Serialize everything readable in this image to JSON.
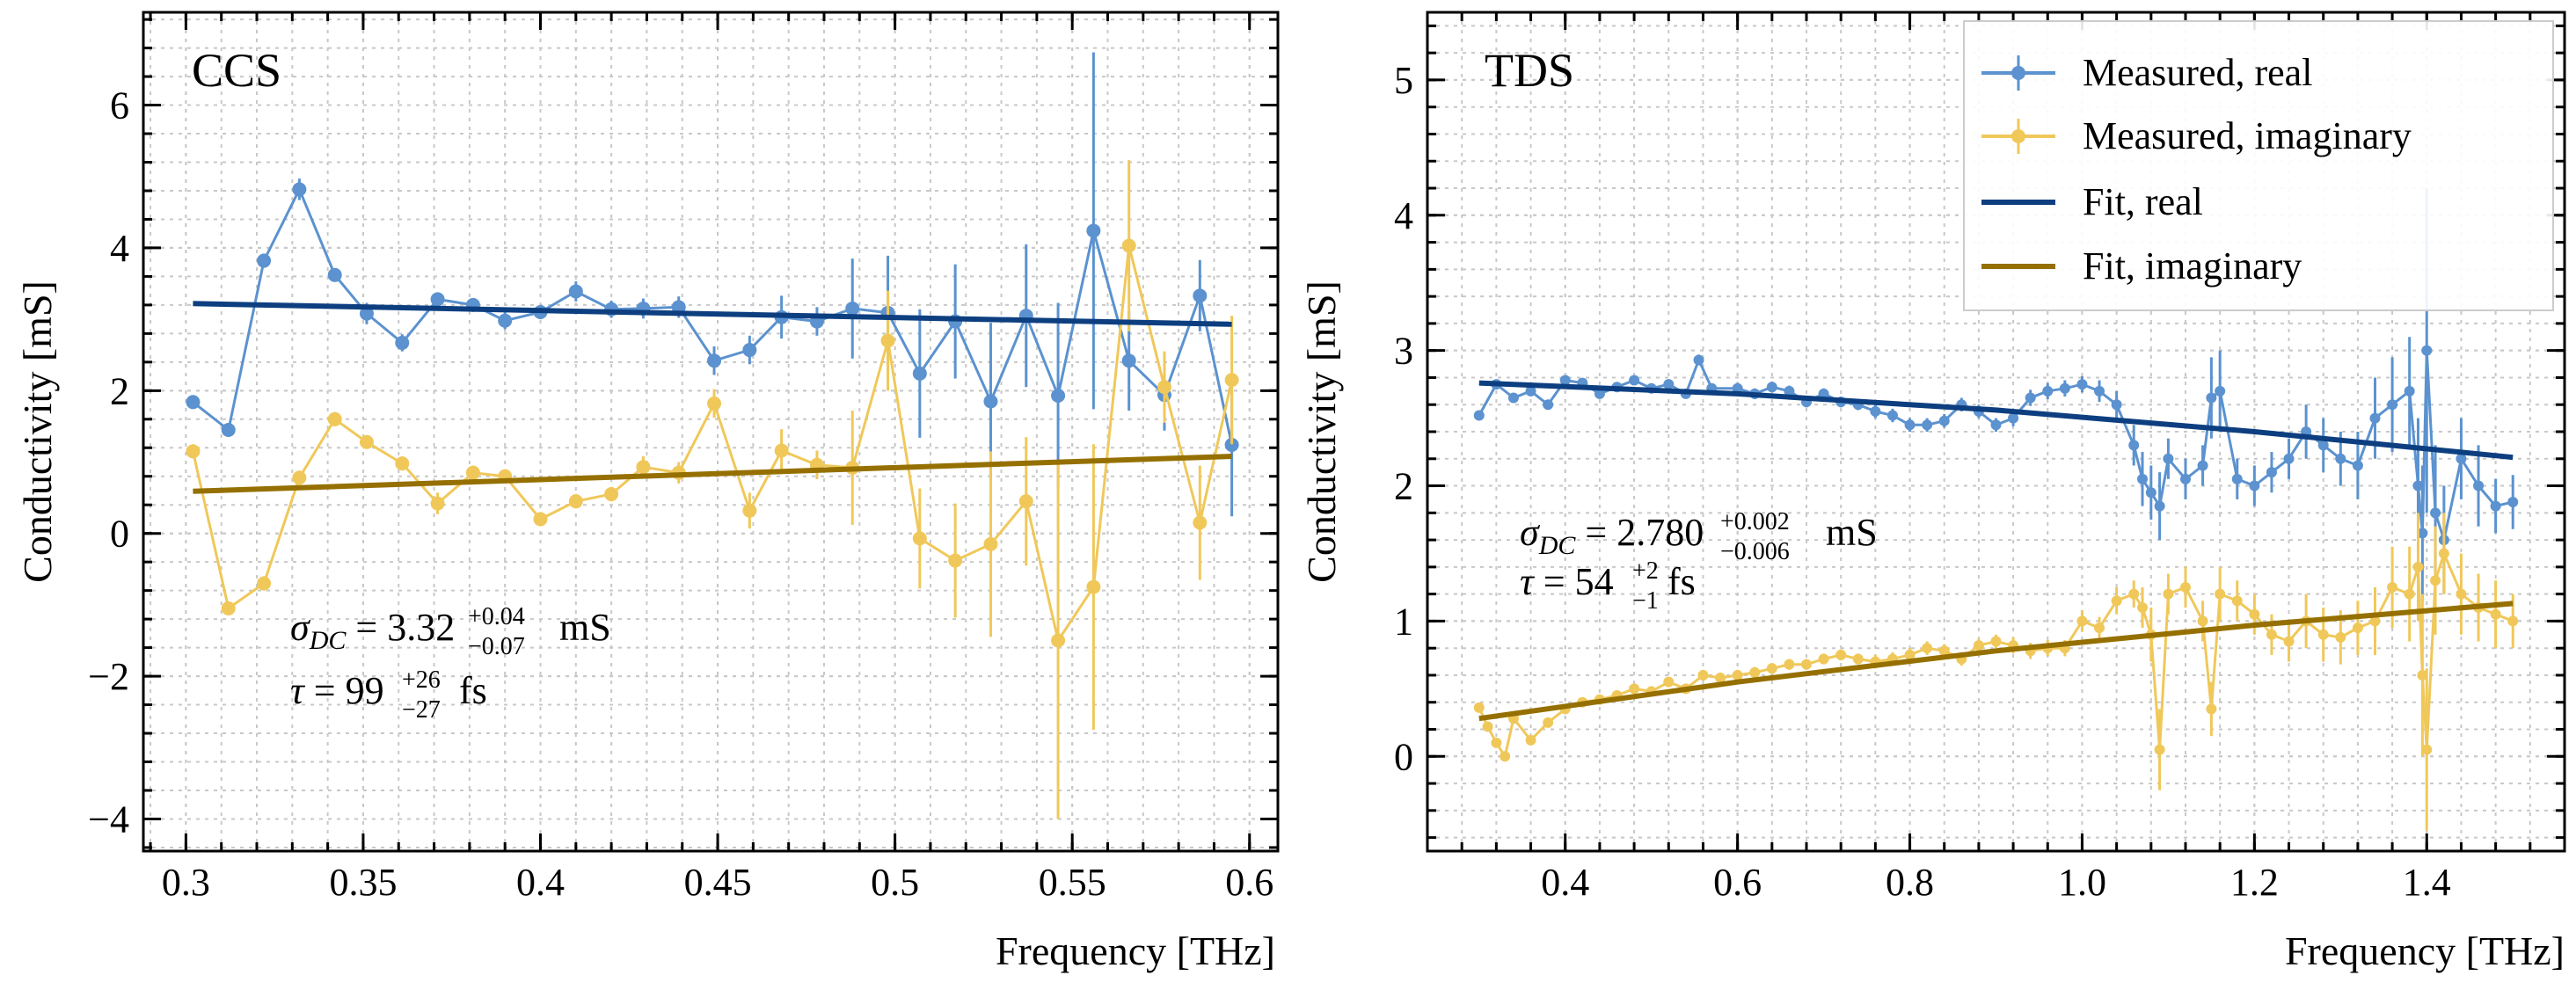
{
  "chart_data": [
    {
      "type": "line",
      "panel_label": "CCS",
      "xlabel": "Frequency [THz]",
      "ylabel": "Conductivity [mS]",
      "xlim": [
        0.288,
        0.608
      ],
      "ylim": [
        -4.45,
        7.3
      ],
      "xticks": [
        0.3,
        0.35,
        0.4,
        0.45,
        0.5,
        0.55,
        0.6
      ],
      "xtick_labels": [
        "0.3",
        "0.35",
        "0.4",
        "0.45",
        "0.5",
        "0.55",
        "0.6"
      ],
      "yticks": [
        -4,
        -2,
        0,
        2,
        4,
        6
      ],
      "ytick_labels": [
        "−4",
        "−2",
        "0",
        "2",
        "4",
        "6"
      ],
      "grid": true,
      "annotation": {
        "sigma_symbol": "σ",
        "sigma_sub": "DC",
        "sigma_value": "3.32",
        "sigma_plus": "+0.04",
        "sigma_minus": "−0.07",
        "sigma_unit": "mS",
        "tau_symbol": "τ",
        "tau_value": "99",
        "tau_plus": "+26",
        "tau_minus": "−27",
        "tau_unit": "fs"
      },
      "series": [
        {
          "name": "Measured, real",
          "color": "#5b92cf",
          "x": [
            0.302,
            0.312,
            0.322,
            0.332,
            0.342,
            0.351,
            0.361,
            0.371,
            0.381,
            0.39,
            0.4,
            0.41,
            0.42,
            0.429,
            0.439,
            0.449,
            0.459,
            0.468,
            0.478,
            0.488,
            0.498,
            0.507,
            0.517,
            0.527,
            0.537,
            0.546,
            0.556,
            0.566,
            0.576,
            0.586,
            0.595
          ],
          "y": [
            1.84,
            1.45,
            3.82,
            4.82,
            3.62,
            3.08,
            2.67,
            3.28,
            3.2,
            2.98,
            3.1,
            3.39,
            3.14,
            3.15,
            3.17,
            2.42,
            2.57,
            3.03,
            2.97,
            3.15,
            3.09,
            2.24,
            2.97,
            1.85,
            3.05,
            1.93,
            4.24,
            2.42,
            1.94,
            3.33,
            1.24
          ],
          "err": [
            0.08,
            0.08,
            0.1,
            0.15,
            0.08,
            0.15,
            0.12,
            0.08,
            0.08,
            0.12,
            0.1,
            0.14,
            0.12,
            0.14,
            0.15,
            0.2,
            0.2,
            0.3,
            0.2,
            0.7,
            0.8,
            0.9,
            0.8,
            1.1,
            1.0,
            1.3,
            2.5,
            0.7,
            0.5,
            0.5,
            1.0
          ]
        },
        {
          "name": "Measured, imaginary",
          "color": "#f0c85a",
          "x": [
            0.302,
            0.312,
            0.322,
            0.332,
            0.342,
            0.351,
            0.361,
            0.371,
            0.381,
            0.39,
            0.4,
            0.41,
            0.42,
            0.429,
            0.439,
            0.449,
            0.459,
            0.468,
            0.478,
            0.488,
            0.498,
            0.507,
            0.517,
            0.527,
            0.537,
            0.546,
            0.556,
            0.566,
            0.576,
            0.586,
            0.595
          ],
          "y": [
            1.15,
            -1.05,
            -0.7,
            0.78,
            1.6,
            1.28,
            0.98,
            0.42,
            0.85,
            0.8,
            0.2,
            0.45,
            0.55,
            0.93,
            0.85,
            1.82,
            0.32,
            1.16,
            0.96,
            0.92,
            2.7,
            -0.07,
            -0.38,
            -0.15,
            0.45,
            -1.5,
            -0.75,
            4.03,
            2.05,
            0.15,
            2.15
          ],
          "err": [
            0.1,
            0.08,
            0.1,
            0.1,
            0.1,
            0.08,
            0.1,
            0.15,
            0.1,
            0.1,
            0.1,
            0.1,
            0.1,
            0.15,
            0.15,
            0.2,
            0.25,
            0.3,
            0.2,
            0.8,
            0.7,
            0.7,
            0.8,
            1.3,
            0.9,
            2.5,
            2.0,
            1.2,
            0.5,
            0.8,
            0.9
          ]
        },
        {
          "name": "Fit, real",
          "color": "#0d3f80",
          "x": [
            0.302,
            0.595
          ],
          "y": [
            3.22,
            2.93
          ]
        },
        {
          "name": "Fit, imaginary",
          "color": "#957000",
          "x": [
            0.302,
            0.595
          ],
          "y": [
            0.59,
            1.08
          ]
        }
      ]
    },
    {
      "type": "line",
      "panel_label": "TDS",
      "xlabel": "Frequency [THz]",
      "ylabel": "Conductivity [mS]",
      "xlim": [
        0.24,
        1.56
      ],
      "ylim": [
        -0.7,
        5.5
      ],
      "xticks": [
        0.4,
        0.6,
        0.8,
        1.0,
        1.2,
        1.4
      ],
      "xtick_labels": [
        "0.4",
        "0.6",
        "0.8",
        "1.0",
        "1.2",
        "1.4"
      ],
      "yticks": [
        0,
        1,
        2,
        3,
        4,
        5
      ],
      "ytick_labels": [
        "0",
        "1",
        "2",
        "3",
        "4",
        "5"
      ],
      "grid": true,
      "legend": "top-right",
      "annotation": {
        "sigma_symbol": "σ",
        "sigma_sub": "DC",
        "sigma_value": "2.780",
        "sigma_plus": "+0.002",
        "sigma_minus": "−0.006",
        "sigma_unit": "mS",
        "tau_symbol": "τ",
        "tau_value": "54",
        "tau_plus": "+2",
        "tau_minus": "−1",
        "tau_unit": "fs"
      },
      "series": [
        {
          "name": "Measured, real",
          "color": "#5b92cf",
          "x": [
            0.3,
            0.32,
            0.34,
            0.36,
            0.38,
            0.4,
            0.42,
            0.44,
            0.46,
            0.48,
            0.5,
            0.52,
            0.54,
            0.555,
            0.57,
            0.6,
            0.62,
            0.64,
            0.66,
            0.68,
            0.7,
            0.72,
            0.74,
            0.76,
            0.78,
            0.8,
            0.82,
            0.84,
            0.86,
            0.88,
            0.9,
            0.92,
            0.94,
            0.96,
            0.98,
            1.0,
            1.02,
            1.04,
            1.06,
            1.07,
            1.08,
            1.09,
            1.1,
            1.12,
            1.14,
            1.15,
            1.16,
            1.18,
            1.2,
            1.22,
            1.24,
            1.26,
            1.28,
            1.3,
            1.32,
            1.34,
            1.36,
            1.38,
            1.39,
            1.395,
            1.4,
            1.41,
            1.42,
            1.44,
            1.46,
            1.48,
            1.5
          ],
          "y": [
            2.52,
            2.75,
            2.65,
            2.7,
            2.6,
            2.78,
            2.76,
            2.68,
            2.73,
            2.78,
            2.72,
            2.75,
            2.68,
            2.93,
            2.72,
            2.72,
            2.68,
            2.73,
            2.7,
            2.62,
            2.68,
            2.62,
            2.6,
            2.55,
            2.52,
            2.45,
            2.45,
            2.48,
            2.6,
            2.55,
            2.45,
            2.5,
            2.65,
            2.7,
            2.72,
            2.75,
            2.7,
            2.6,
            2.3,
            2.05,
            1.95,
            1.85,
            2.2,
            2.05,
            2.15,
            2.65,
            2.7,
            2.05,
            2.0,
            2.1,
            2.2,
            2.4,
            2.3,
            2.2,
            2.15,
            2.5,
            2.6,
            2.7,
            2.0,
            1.65,
            3.0,
            1.8,
            1.6,
            2.2,
            2.0,
            1.85,
            1.88
          ],
          "err": [
            0.03,
            0.03,
            0.03,
            0.03,
            0.03,
            0.03,
            0.03,
            0.03,
            0.03,
            0.03,
            0.03,
            0.03,
            0.03,
            0.04,
            0.03,
            0.04,
            0.04,
            0.04,
            0.04,
            0.04,
            0.04,
            0.04,
            0.04,
            0.05,
            0.05,
            0.05,
            0.05,
            0.05,
            0.05,
            0.05,
            0.05,
            0.06,
            0.06,
            0.06,
            0.06,
            0.06,
            0.08,
            0.1,
            0.15,
            0.2,
            0.2,
            0.25,
            0.15,
            0.15,
            0.15,
            0.3,
            0.3,
            0.15,
            0.15,
            0.15,
            0.15,
            0.2,
            0.2,
            0.2,
            0.25,
            0.3,
            0.35,
            0.4,
            0.5,
            0.5,
            1.2,
            0.5,
            0.4,
            0.3,
            0.3,
            0.2,
            0.2
          ]
        },
        {
          "name": "Measured, imaginary",
          "color": "#f0c85a",
          "x": [
            0.3,
            0.31,
            0.32,
            0.33,
            0.34,
            0.36,
            0.38,
            0.4,
            0.42,
            0.44,
            0.46,
            0.48,
            0.5,
            0.52,
            0.54,
            0.56,
            0.58,
            0.6,
            0.62,
            0.64,
            0.66,
            0.68,
            0.7,
            0.72,
            0.74,
            0.76,
            0.78,
            0.8,
            0.82,
            0.84,
            0.86,
            0.88,
            0.9,
            0.92,
            0.94,
            0.96,
            0.98,
            1.0,
            1.02,
            1.04,
            1.06,
            1.07,
            1.08,
            1.09,
            1.1,
            1.12,
            1.14,
            1.15,
            1.16,
            1.18,
            1.2,
            1.22,
            1.24,
            1.26,
            1.28,
            1.3,
            1.32,
            1.34,
            1.36,
            1.38,
            1.39,
            1.395,
            1.4,
            1.41,
            1.42,
            1.44,
            1.46,
            1.48,
            1.5
          ],
          "y": [
            0.36,
            0.22,
            0.1,
            0.0,
            0.28,
            0.12,
            0.25,
            0.35,
            0.4,
            0.42,
            0.45,
            0.5,
            0.48,
            0.55,
            0.5,
            0.6,
            0.58,
            0.6,
            0.62,
            0.65,
            0.68,
            0.68,
            0.72,
            0.75,
            0.72,
            0.7,
            0.72,
            0.75,
            0.8,
            0.78,
            0.72,
            0.82,
            0.85,
            0.82,
            0.78,
            0.8,
            0.8,
            1.0,
            0.95,
            1.15,
            1.2,
            1.1,
            0.9,
            0.05,
            1.2,
            1.25,
            1.0,
            0.35,
            1.2,
            1.15,
            1.05,
            0.9,
            0.85,
            1.0,
            0.9,
            0.88,
            0.95,
            1.0,
            1.25,
            1.2,
            1.4,
            0.6,
            0.05,
            1.3,
            1.5,
            1.2,
            1.1,
            1.05,
            1.0
          ],
          "err": [
            0.03,
            0.03,
            0.03,
            0.03,
            0.03,
            0.03,
            0.03,
            0.03,
            0.03,
            0.03,
            0.03,
            0.03,
            0.03,
            0.03,
            0.03,
            0.04,
            0.04,
            0.04,
            0.04,
            0.04,
            0.04,
            0.04,
            0.04,
            0.04,
            0.04,
            0.05,
            0.05,
            0.05,
            0.05,
            0.05,
            0.05,
            0.05,
            0.05,
            0.06,
            0.06,
            0.06,
            0.06,
            0.08,
            0.08,
            0.1,
            0.1,
            0.15,
            0.2,
            0.3,
            0.15,
            0.15,
            0.15,
            0.2,
            0.2,
            0.15,
            0.15,
            0.15,
            0.15,
            0.2,
            0.2,
            0.2,
            0.2,
            0.25,
            0.3,
            0.35,
            0.4,
            0.6,
            0.6,
            0.4,
            0.3,
            0.3,
            0.25,
            0.25,
            0.2
          ]
        },
        {
          "name": "Fit, real",
          "color": "#0d3f80",
          "x": [
            0.3,
            0.6,
            0.9,
            1.2,
            1.5
          ],
          "y": [
            2.76,
            2.68,
            2.56,
            2.4,
            2.21
          ]
        },
        {
          "name": "Fit, imaginary",
          "color": "#957000",
          "x": [
            0.3,
            0.6,
            0.9,
            1.2,
            1.5
          ],
          "y": [
            0.28,
            0.55,
            0.78,
            0.97,
            1.13
          ]
        }
      ]
    }
  ]
}
